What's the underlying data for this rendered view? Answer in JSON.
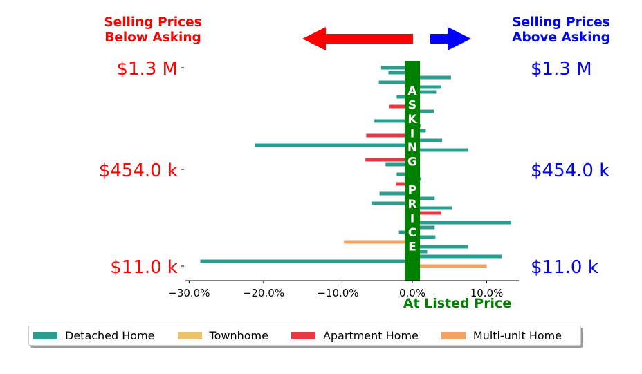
{
  "header": {
    "left_title_line1": "Selling Prices",
    "left_title_line2": "Below Asking",
    "right_title_line1": "Selling Prices",
    "right_title_line2": "Above Asking",
    "left_color": "#ff0000",
    "right_color": "#0000ff"
  },
  "center": {
    "banner_letters": [
      "A",
      "S",
      "K",
      "I",
      "N",
      "G",
      "",
      "P",
      "R",
      "I",
      "C",
      "E"
    ],
    "banner_color": "#008000",
    "bottom_label": "At Listed Price"
  },
  "chart_data": {
    "type": "bar",
    "orientation": "horizontal",
    "xlabel": "",
    "ylabel": "",
    "xlim": [
      -30.5,
      14.5
    ],
    "x_ticks": [
      -30,
      -20,
      -10,
      0,
      10
    ],
    "x_tick_labels": [
      "−30.0%",
      "−20.0%",
      "−10.0%",
      "0.0%",
      "10.0%"
    ],
    "y_ticks_left": [
      "$1.3 M",
      "$454.0 k",
      "$11.0 k"
    ],
    "y_ticks_right": [
      "$1.3 M",
      "$454.0 k",
      "$11.0 k"
    ],
    "y_tick_rank": [
      1,
      22,
      42
    ],
    "n_slots": 42,
    "series": [
      {
        "name": "Detached Home",
        "color": "#2a9d8f"
      },
      {
        "name": "Townhome",
        "color": "#e9c46a"
      },
      {
        "name": "Apartment Home",
        "color": "#e63946"
      },
      {
        "name": "Multi-unit Home",
        "color": "#f4a261"
      }
    ],
    "bars": [
      {
        "rank": 1,
        "value": -4.2,
        "series": 0
      },
      {
        "rank": 2,
        "value": -3.2,
        "series": 0
      },
      {
        "rank": 3,
        "value": 5.2,
        "series": 0
      },
      {
        "rank": 4,
        "value": -4.5,
        "series": 0
      },
      {
        "rank": 5,
        "value": 3.8,
        "series": 0
      },
      {
        "rank": 6,
        "value": 3.2,
        "series": 0
      },
      {
        "rank": 7,
        "value": -2.1,
        "series": 0
      },
      {
        "rank": 8,
        "value": 0.8,
        "series": 0
      },
      {
        "rank": 9,
        "value": -3.1,
        "series": 2
      },
      {
        "rank": 10,
        "value": 2.9,
        "series": 0
      },
      {
        "rank": 11,
        "value": 0.8,
        "series": 2
      },
      {
        "rank": 12,
        "value": -5.1,
        "series": 0
      },
      {
        "rank": 13,
        "value": 1.1,
        "series": 0
      },
      {
        "rank": 14,
        "value": 1.8,
        "series": 0
      },
      {
        "rank": 15,
        "value": -6.2,
        "series": 2
      },
      {
        "rank": 16,
        "value": 4.0,
        "series": 0
      },
      {
        "rank": 17,
        "value": -21.2,
        "series": 0
      },
      {
        "rank": 18,
        "value": 7.5,
        "series": 0
      },
      {
        "rank": 19,
        "value": 1.0,
        "series": 0
      },
      {
        "rank": 20,
        "value": -6.3,
        "series": 2
      },
      {
        "rank": 21,
        "value": -3.6,
        "series": 0
      },
      {
        "rank": 22,
        "value": 0.8,
        "series": 0
      },
      {
        "rank": 23,
        "value": -2.1,
        "series": 0
      },
      {
        "rank": 24,
        "value": 1.2,
        "series": 0
      },
      {
        "rank": 25,
        "value": -2.2,
        "series": 2
      },
      {
        "rank": 26,
        "value": 0.8,
        "series": 0
      },
      {
        "rank": 27,
        "value": -4.4,
        "series": 0
      },
      {
        "rank": 28,
        "value": 3.0,
        "series": 0
      },
      {
        "rank": 29,
        "value": -5.5,
        "series": 0
      },
      {
        "rank": 30,
        "value": 5.3,
        "series": 0
      },
      {
        "rank": 31,
        "value": 3.9,
        "series": 2
      },
      {
        "rank": 32,
        "value": 0.8,
        "series": 0
      },
      {
        "rank": 33,
        "value": 13.3,
        "series": 0
      },
      {
        "rank": 34,
        "value": 3.0,
        "series": 0
      },
      {
        "rank": 35,
        "value": -1.8,
        "series": 0
      },
      {
        "rank": 36,
        "value": 3.1,
        "series": 0
      },
      {
        "rank": 37,
        "value": -9.2,
        "series": 3
      },
      {
        "rank": 38,
        "value": 7.5,
        "series": 0
      },
      {
        "rank": 39,
        "value": 2.0,
        "series": 0
      },
      {
        "rank": 40,
        "value": 12.0,
        "series": 0
      },
      {
        "rank": 41,
        "value": -28.5,
        "series": 0
      },
      {
        "rank": 42,
        "value": 10.0,
        "series": 3
      }
    ],
    "grid": false,
    "legend_position": "bottom"
  }
}
